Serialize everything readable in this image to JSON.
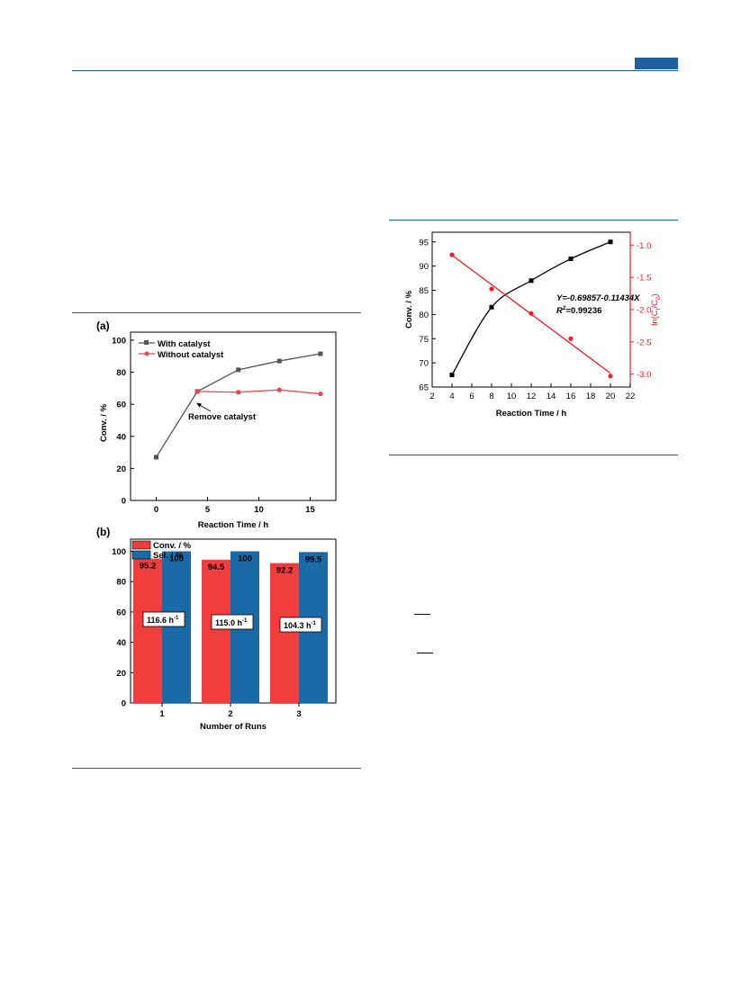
{
  "page": {
    "accent_color": "#1f5f9e"
  },
  "chart_data": [
    {
      "panel_label": "(a)",
      "type": "line",
      "xlabel": "Reaction Time / h",
      "ylabel": "Conv. / %",
      "xlim": [
        -2.5,
        17.5
      ],
      "ylim": [
        0,
        105
      ],
      "x_ticks": [
        0,
        5,
        10,
        15
      ],
      "y_ticks": [
        0,
        20,
        40,
        60,
        80,
        100
      ],
      "series": [
        {
          "name": "With catalyst",
          "color": "#555555",
          "marker": "square",
          "x": [
            0,
            4,
            8,
            12,
            16
          ],
          "values": [
            27,
            68,
            81.5,
            87,
            91.5
          ]
        },
        {
          "name": "Without catalyst",
          "color": "#e8474b",
          "marker": "circle",
          "x": [
            4,
            8,
            12,
            16
          ],
          "values": [
            68,
            67.5,
            69,
            66.5
          ]
        }
      ],
      "annotations": [
        {
          "text": "Remove catalyst",
          "x": 4,
          "y": 68
        }
      ],
      "legend_position": "top-left"
    },
    {
      "panel_label": "(b)",
      "type": "bar",
      "xlabel": "Number of Runs",
      "ylabel": "",
      "ylim": [
        0,
        108
      ],
      "y_ticks": [
        0,
        20,
        40,
        60,
        80,
        100
      ],
      "categories": [
        "1",
        "2",
        "3"
      ],
      "series": [
        {
          "name": "Conv. / %",
          "color": "#f23d3d",
          "values": [
            95.2,
            94.5,
            92.2
          ],
          "labels": [
            "95.2",
            "94.5",
            "92.2"
          ]
        },
        {
          "name": "Sel. / %",
          "color": "#1a6aa8",
          "values": [
            100,
            100,
            99.5
          ],
          "labels": [
            "100",
            "100",
            "99.5"
          ]
        }
      ],
      "box_labels": [
        {
          "value": "116.6 h",
          "sup": "-1"
        },
        {
          "value": "115.0 h",
          "sup": "-1"
        },
        {
          "value": "104.3 h",
          "sup": "-1"
        }
      ],
      "legend_position": "top-left"
    },
    {
      "type": "scatter",
      "xlabel": "Reaction Time / h",
      "ylabel": "Conv. / %",
      "ylabel_right": "ln(C",
      "xlim": [
        2,
        22
      ],
      "ylim": [
        65,
        97
      ],
      "ylim_right": [
        -3.2,
        -0.8
      ],
      "x_ticks": [
        2,
        4,
        6,
        8,
        10,
        12,
        14,
        16,
        18,
        20,
        22
      ],
      "y_ticks": [
        65,
        70,
        75,
        80,
        85,
        90,
        95
      ],
      "y_ticks_right": [
        "-1.0",
        "-1.5",
        "-2.0",
        "-2.5",
        "-3.0"
      ],
      "series": [
        {
          "name": "Conv.",
          "color": "#000000",
          "marker": "square",
          "axis": "left",
          "x": [
            4,
            8,
            12,
            16,
            20
          ],
          "values": [
            67.5,
            81.5,
            87,
            91.5,
            95
          ]
        },
        {
          "name": "ln(Ct/C0)",
          "color": "#ee1c25",
          "marker": "circle",
          "axis": "right",
          "x": [
            4,
            8,
            12,
            16,
            20
          ],
          "values": [
            -1.15,
            -1.68,
            -2.06,
            -2.45,
            -3.03
          ]
        }
      ],
      "equation": "Y=-0.69857-0.11434X",
      "r2_prefix": "R",
      "r2_value": "=0.99236"
    }
  ]
}
